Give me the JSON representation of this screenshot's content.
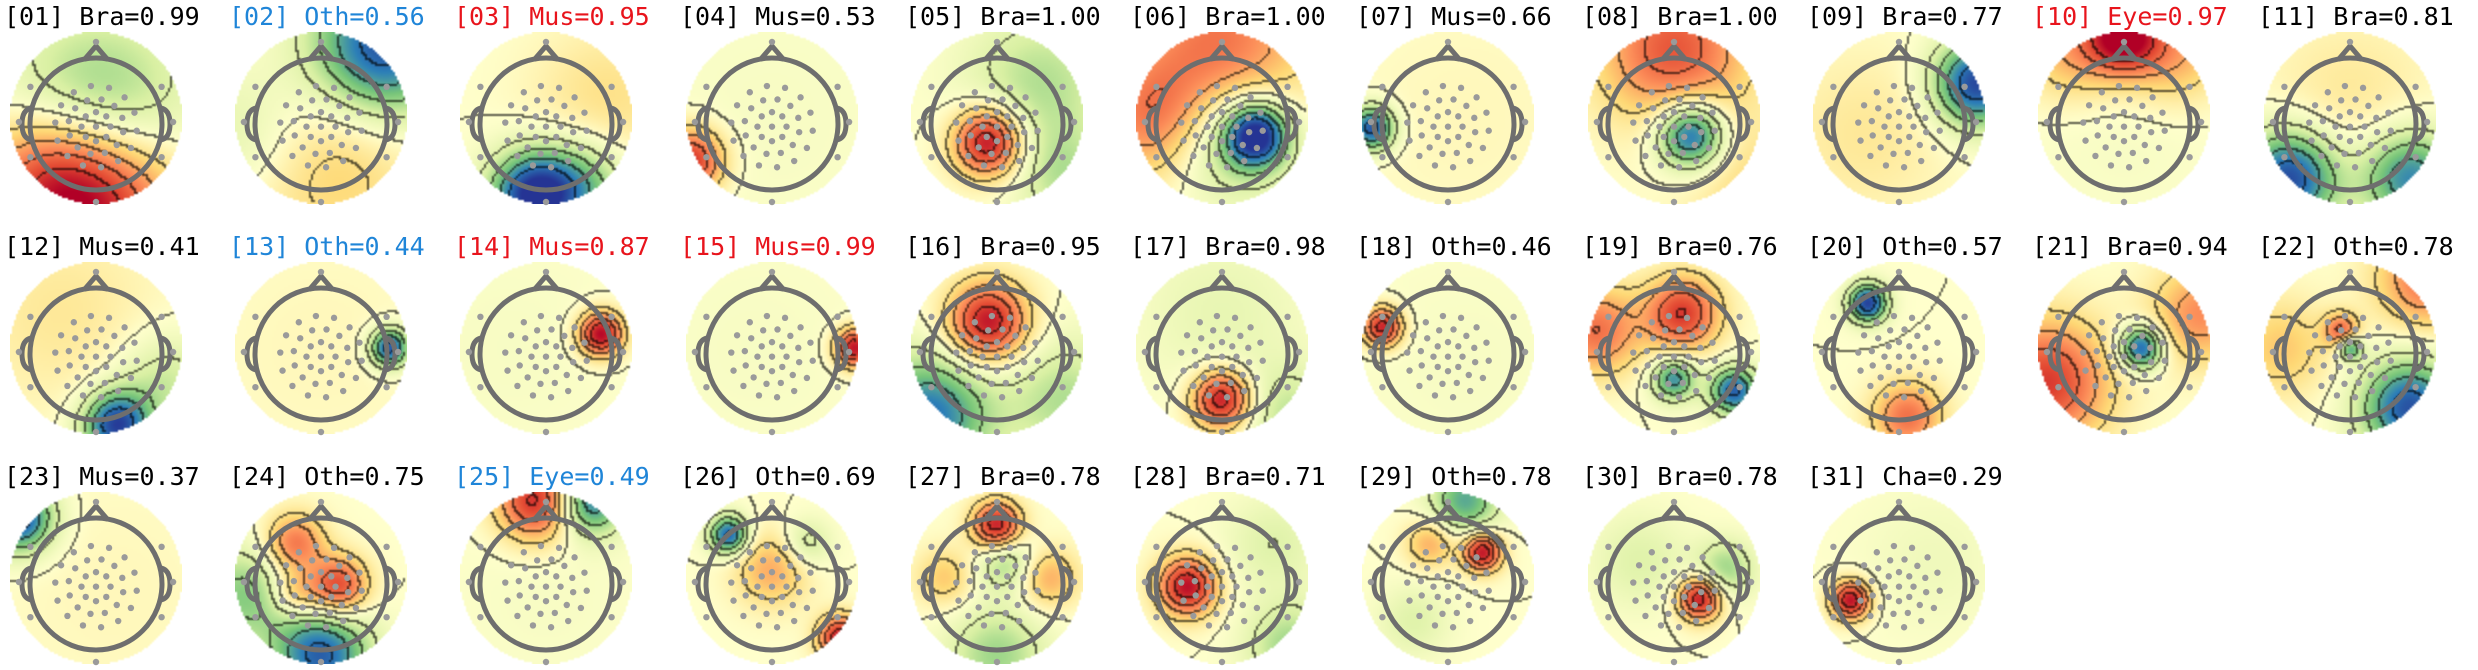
{
  "figure": {
    "colors": {
      "default_label": "#000000",
      "highlight_red": "#e8141c",
      "highlight_blue": "#1f85d8",
      "head_outline": "#6e6e6e",
      "electrode": "#9a9a9a",
      "contour": "#3a3a3a",
      "colormap": [
        "#b10026",
        "#e34a33",
        "#fc8d59",
        "#fed976",
        "#ffffcc",
        "#d9f0a3",
        "#78c679",
        "#2c7fb8",
        "#253494"
      ]
    },
    "components": [
      {
        "label": "[01] Bra=0.99",
        "color": "default",
        "blobs": [
          [
            0.5,
            0.45,
            0.55,
            0.38
          ],
          [
            0.5,
            1.0,
            -0.9,
            0.35
          ],
          [
            0.2,
            0.85,
            -0.5,
            0.3
          ]
        ]
      },
      {
        "label": "[02] Oth=0.56",
        "color": "blue",
        "blobs": [
          [
            0.85,
            0.1,
            0.95,
            0.3
          ],
          [
            0.5,
            0.7,
            -0.35,
            0.4
          ],
          [
            0.1,
            0.6,
            0.3,
            0.3
          ]
        ]
      },
      {
        "label": "[03] Mus=0.95",
        "color": "red",
        "blobs": [
          [
            0.42,
            0.95,
            0.95,
            0.18
          ],
          [
            0.7,
            0.9,
            0.5,
            0.2
          ],
          [
            0.85,
            0.4,
            -0.2,
            0.3
          ]
        ]
      },
      {
        "label": "[04] Mus=0.53",
        "color": "default",
        "blobs": [
          [
            0.03,
            0.75,
            -0.85,
            0.13
          ],
          [
            0.5,
            0.5,
            0.05,
            0.6
          ]
        ]
      },
      {
        "label": "[05] Bra=1.00",
        "color": "default",
        "blobs": [
          [
            0.45,
            0.64,
            -1.0,
            0.14
          ],
          [
            0.75,
            0.3,
            0.35,
            0.3
          ],
          [
            0.9,
            0.85,
            0.3,
            0.2
          ]
        ]
      },
      {
        "label": "[06] Bra=1.00",
        "color": "default",
        "blobs": [
          [
            0.7,
            0.6,
            0.95,
            0.13
          ],
          [
            0.55,
            0.62,
            0.45,
            0.25
          ],
          [
            0.5,
            0.08,
            -0.6,
            0.35
          ],
          [
            0.08,
            0.5,
            -0.5,
            0.25
          ]
        ]
      },
      {
        "label": "[07] Mus=0.66",
        "color": "default",
        "blobs": [
          [
            0.06,
            0.56,
            0.9,
            0.09
          ],
          [
            0.6,
            0.5,
            -0.05,
            0.5
          ]
        ]
      },
      {
        "label": "[08] Bra=1.00",
        "color": "default",
        "blobs": [
          [
            0.6,
            0.6,
            0.95,
            0.14
          ],
          [
            0.5,
            0.1,
            -0.7,
            0.3
          ],
          [
            0.9,
            0.85,
            -0.2,
            0.25
          ]
        ]
      },
      {
        "label": "[09] Bra=0.77",
        "color": "default",
        "blobs": [
          [
            0.95,
            0.3,
            0.95,
            0.18
          ],
          [
            0.3,
            0.6,
            -0.15,
            0.35
          ]
        ]
      },
      {
        "label": "[10] Eye=0.97",
        "color": "red",
        "blobs": [
          [
            0.5,
            0.02,
            -1.0,
            0.15
          ],
          [
            0.2,
            0.1,
            -0.4,
            0.2
          ],
          [
            0.8,
            0.12,
            -0.4,
            0.2
          ],
          [
            0.5,
            0.6,
            0.05,
            0.4
          ]
        ]
      },
      {
        "label": "[11] Bra=0.81",
        "color": "default",
        "blobs": [
          [
            0.15,
            0.85,
            0.95,
            0.2
          ],
          [
            0.85,
            0.85,
            0.75,
            0.2
          ],
          [
            0.5,
            0.4,
            -0.15,
            0.35
          ]
        ]
      },
      {
        "label": "[12] Mus=0.41",
        "color": "default",
        "blobs": [
          [
            0.62,
            0.95,
            0.95,
            0.14
          ],
          [
            0.9,
            0.7,
            0.3,
            0.2
          ],
          [
            0.3,
            0.3,
            -0.15,
            0.4
          ]
        ]
      },
      {
        "label": "[13] Oth=0.44",
        "color": "blue",
        "blobs": [
          [
            0.9,
            0.5,
            0.9,
            0.08
          ],
          [
            0.5,
            0.5,
            -0.05,
            0.5
          ]
        ]
      },
      {
        "label": "[14] Mus=0.87",
        "color": "red",
        "blobs": [
          [
            0.82,
            0.42,
            -1.0,
            0.09
          ],
          [
            0.3,
            0.5,
            0.05,
            0.5
          ]
        ]
      },
      {
        "label": "[15] Mus=0.99",
        "color": "red",
        "blobs": [
          [
            0.98,
            0.5,
            -0.95,
            0.08
          ],
          [
            0.4,
            0.5,
            0.05,
            0.5
          ]
        ]
      },
      {
        "label": "[16] Bra=0.95",
        "color": "default",
        "blobs": [
          [
            0.45,
            0.35,
            -0.95,
            0.16
          ],
          [
            0.1,
            0.9,
            0.8,
            0.25
          ],
          [
            0.9,
            0.8,
            0.35,
            0.25
          ]
        ]
      },
      {
        "label": "[17] Bra=0.98",
        "color": "default",
        "blobs": [
          [
            0.5,
            0.8,
            -0.95,
            0.12
          ],
          [
            0.5,
            0.3,
            0.15,
            0.35
          ],
          [
            0.9,
            0.9,
            0.3,
            0.2
          ]
        ]
      },
      {
        "label": "[18] Oth=0.46",
        "color": "default",
        "blobs": [
          [
            0.12,
            0.38,
            -0.9,
            0.08
          ],
          [
            0.6,
            0.6,
            0.05,
            0.5
          ]
        ]
      },
      {
        "label": "[19] Bra=0.76",
        "color": "default",
        "blobs": [
          [
            0.55,
            0.3,
            -0.8,
            0.15
          ],
          [
            0.5,
            0.68,
            0.7,
            0.09
          ],
          [
            0.85,
            0.75,
            0.85,
            0.1
          ],
          [
            0.05,
            0.4,
            -0.6,
            0.18
          ]
        ]
      },
      {
        "label": "[20] Oth=0.57",
        "color": "default",
        "blobs": [
          [
            0.32,
            0.24,
            0.95,
            0.08
          ],
          [
            0.55,
            0.9,
            -0.6,
            0.14
          ]
        ]
      },
      {
        "label": "[21] Bra=0.94",
        "color": "default",
        "blobs": [
          [
            0.6,
            0.5,
            0.9,
            0.09
          ],
          [
            0.05,
            0.7,
            -0.8,
            0.25
          ],
          [
            0.95,
            0.3,
            -0.5,
            0.2
          ]
        ]
      },
      {
        "label": "[22] Oth=0.78",
        "color": "default",
        "blobs": [
          [
            0.45,
            0.4,
            -0.6,
            0.07
          ],
          [
            0.5,
            0.5,
            0.7,
            0.05
          ],
          [
            0.85,
            0.85,
            0.9,
            0.2
          ],
          [
            0.95,
            0.1,
            -0.6,
            0.2
          ],
          [
            0.1,
            0.5,
            -0.3,
            0.2
          ]
        ]
      },
      {
        "label": "[23] Mus=0.37",
        "color": "default",
        "blobs": [
          [
            0.05,
            0.15,
            0.95,
            0.14
          ],
          [
            0.6,
            0.6,
            -0.05,
            0.5
          ]
        ]
      },
      {
        "label": "[24] Oth=0.75",
        "color": "default",
        "blobs": [
          [
            0.35,
            0.3,
            -0.6,
            0.12
          ],
          [
            0.6,
            0.55,
            -0.8,
            0.12
          ],
          [
            0.35,
            0.6,
            -0.4,
            0.1
          ],
          [
            0.5,
            0.95,
            0.85,
            0.2
          ],
          [
            0.05,
            0.6,
            0.45,
            0.2
          ]
        ]
      },
      {
        "label": "[25] Eye=0.49",
        "color": "blue",
        "blobs": [
          [
            0.45,
            0.05,
            -0.9,
            0.16
          ],
          [
            0.75,
            0.05,
            0.8,
            0.14
          ],
          [
            0.5,
            0.6,
            0.05,
            0.4
          ]
        ]
      },
      {
        "label": "[26] Oth=0.69",
        "color": "default",
        "blobs": [
          [
            0.25,
            0.25,
            0.85,
            0.08
          ],
          [
            0.9,
            0.85,
            -0.95,
            0.09
          ],
          [
            0.5,
            0.45,
            -0.4,
            0.15
          ],
          [
            0.7,
            0.3,
            0.3,
            0.1
          ]
        ]
      },
      {
        "label": "[27] Bra=0.78",
        "color": "default",
        "blobs": [
          [
            0.5,
            0.2,
            -0.95,
            0.1
          ],
          [
            0.55,
            0.4,
            0.4,
            0.12
          ],
          [
            0.8,
            0.5,
            -0.4,
            0.12
          ],
          [
            0.2,
            0.5,
            -0.3,
            0.12
          ],
          [
            0.5,
            0.95,
            0.4,
            0.2
          ]
        ]
      },
      {
        "label": "[28] Bra=0.71",
        "color": "default",
        "blobs": [
          [
            0.3,
            0.55,
            -0.95,
            0.12
          ],
          [
            0.9,
            0.9,
            0.4,
            0.18
          ],
          [
            0.8,
            0.3,
            0.2,
            0.2
          ]
        ]
      },
      {
        "label": "[29] Oth=0.78",
        "color": "default",
        "blobs": [
          [
            0.7,
            0.35,
            -0.95,
            0.08
          ],
          [
            0.4,
            0.3,
            -0.4,
            0.1
          ],
          [
            0.6,
            0.05,
            0.6,
            0.14
          ],
          [
            0.3,
            0.75,
            0.2,
            0.15
          ]
        ]
      },
      {
        "label": "[30] Bra=0.78",
        "color": "default",
        "blobs": [
          [
            0.65,
            0.62,
            -0.95,
            0.09
          ],
          [
            0.8,
            0.45,
            0.4,
            0.12
          ],
          [
            0.3,
            0.4,
            0.2,
            0.2
          ]
        ]
      },
      {
        "label": "[31] Cha=0.29",
        "color": "default",
        "blobs": [
          [
            0.22,
            0.63,
            -0.95,
            0.08
          ],
          [
            0.7,
            0.4,
            0.1,
            0.3
          ]
        ]
      }
    ]
  }
}
